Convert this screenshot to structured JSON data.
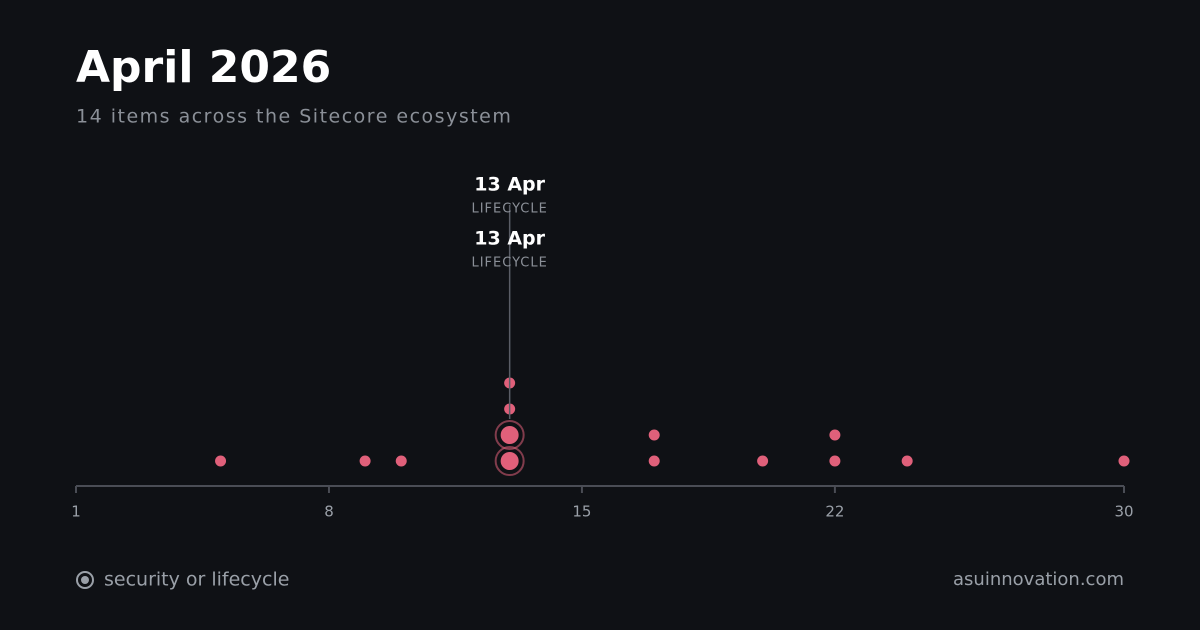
{
  "chart_data": {
    "type": "dot",
    "title": "April 2026",
    "subtitle": "14 items across the Sitecore ecosystem",
    "x": [
      5,
      9,
      10,
      13,
      13,
      13,
      13,
      17,
      17,
      20,
      22,
      22,
      24,
      30
    ],
    "highlight": [
      false,
      false,
      false,
      true,
      true,
      false,
      false,
      false,
      false,
      false,
      false,
      false,
      false,
      false
    ],
    "color": "#e0607a",
    "xlim": [
      1,
      30
    ],
    "xticks": [
      1,
      8,
      15,
      22,
      30
    ],
    "annotations": [
      {
        "label": "13 Apr",
        "kind": "LIFECYCLE"
      },
      {
        "label": "13 Apr",
        "kind": "LIFECYCLE"
      }
    ],
    "legend": "security or lifecycle"
  },
  "footer": "asuinnovation.com"
}
